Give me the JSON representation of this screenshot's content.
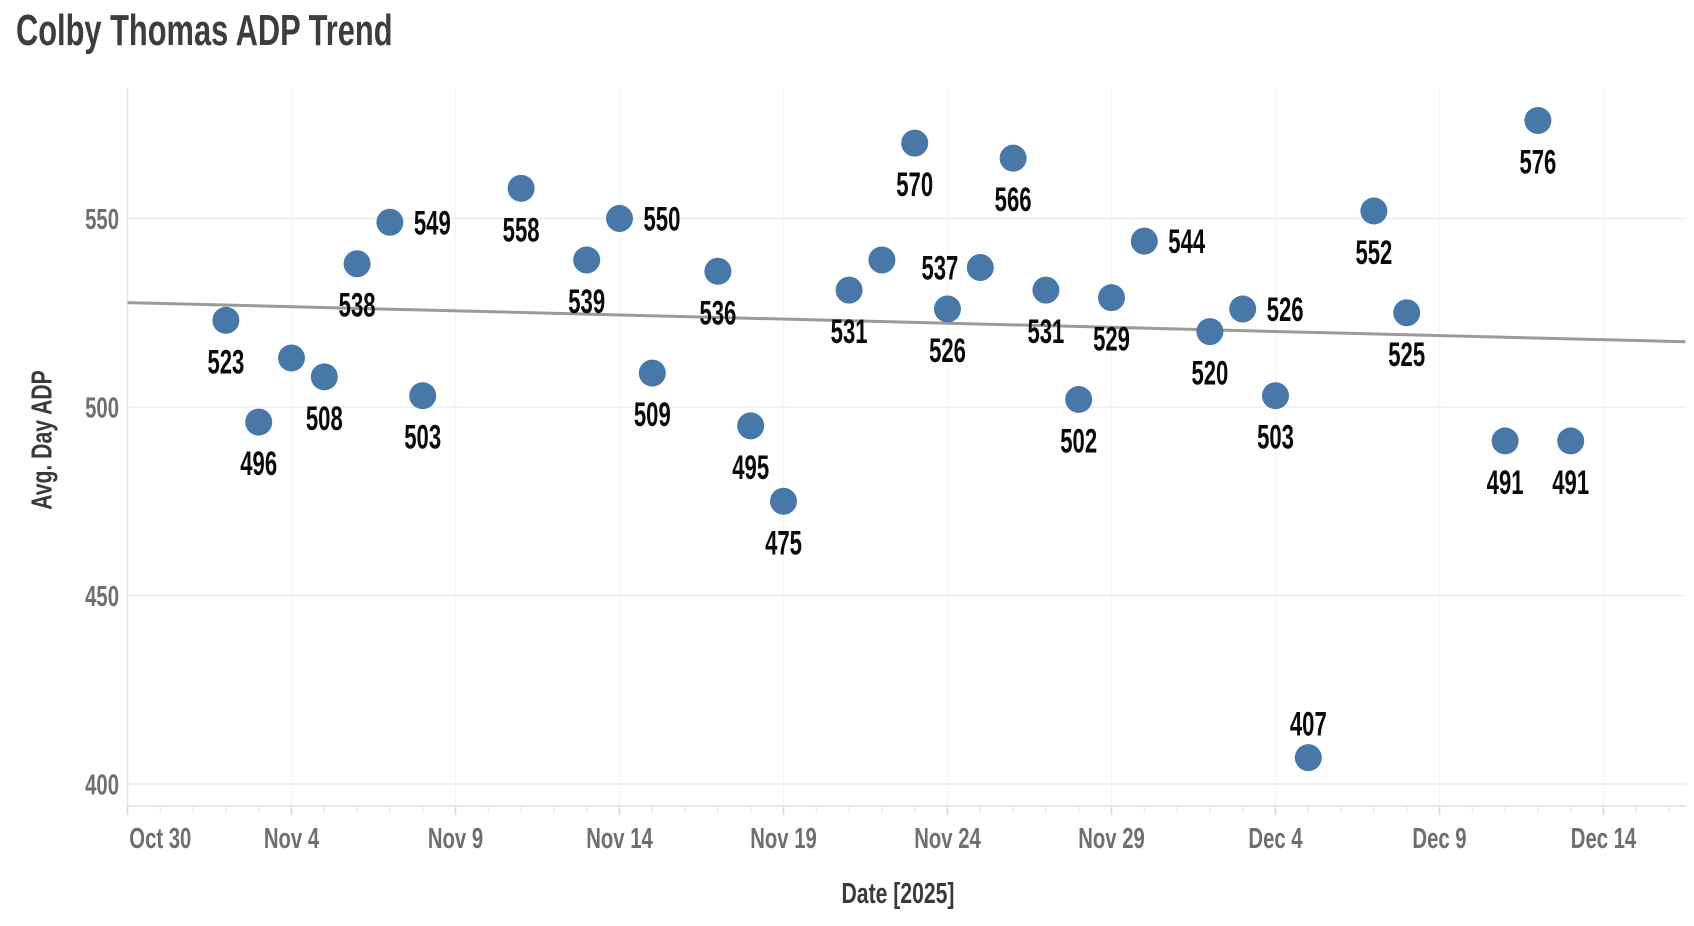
{
  "chart_data": {
    "type": "scatter",
    "title": "Colby Thomas ADP Trend",
    "xlabel": "Date [2025]",
    "ylabel": "Avg. Day ADP",
    "grid": "horizontal major gridlines + faint vertical gridlines at major ticks",
    "legend": "none",
    "y_ticks": [
      400,
      450,
      500,
      550
    ],
    "y_range": [
      394,
      585
    ],
    "x_range_days": [
      0,
      47.5
    ],
    "x_ticks": [
      {
        "label": "Oct 30",
        "day": 0,
        "label_shift_days": 1
      },
      {
        "label": "Nov 4",
        "day": 5,
        "label_shift_days": 0
      },
      {
        "label": "Nov 9",
        "day": 10,
        "label_shift_days": 0
      },
      {
        "label": "Nov 14",
        "day": 15,
        "label_shift_days": 0
      },
      {
        "label": "Nov 19",
        "day": 20,
        "label_shift_days": 0
      },
      {
        "label": "Nov 24",
        "day": 25,
        "label_shift_days": 0
      },
      {
        "label": "Nov 29",
        "day": 30,
        "label_shift_days": 0
      },
      {
        "label": "Dec 4",
        "day": 35,
        "label_shift_days": 0
      },
      {
        "label": "Dec 9",
        "day": 40,
        "label_shift_days": 0
      },
      {
        "label": "Dec 14",
        "day": 45,
        "label_shift_days": 0
      }
    ],
    "points": [
      {
        "date": "Nov 2",
        "day": 3,
        "value": 523,
        "label": "523",
        "label_pos": "below"
      },
      {
        "date": "Nov 3",
        "day": 4,
        "value": 496,
        "label": "496",
        "label_pos": "below"
      },
      {
        "date": "Nov 4",
        "day": 5,
        "value": 513,
        "label": "",
        "label_pos": "none"
      },
      {
        "date": "Nov 5",
        "day": 6,
        "value": 508,
        "label": "508",
        "label_pos": "below"
      },
      {
        "date": "Nov 6",
        "day": 7,
        "value": 538,
        "label": "538",
        "label_pos": "below"
      },
      {
        "date": "Nov 7",
        "day": 8,
        "value": 549,
        "label": "549",
        "label_pos": "right"
      },
      {
        "date": "Nov 8",
        "day": 9,
        "value": 503,
        "label": "503",
        "label_pos": "below"
      },
      {
        "date": "Nov 11",
        "day": 12,
        "value": 558,
        "label": "558",
        "label_pos": "below"
      },
      {
        "date": "Nov 13",
        "day": 14,
        "value": 539,
        "label": "539",
        "label_pos": "below"
      },
      {
        "date": "Nov 14",
        "day": 15,
        "value": 550,
        "label": "550",
        "label_pos": "right"
      },
      {
        "date": "Nov 15",
        "day": 16,
        "value": 509,
        "label": "509",
        "label_pos": "below"
      },
      {
        "date": "Nov 17",
        "day": 18,
        "value": 536,
        "label": "536",
        "label_pos": "below"
      },
      {
        "date": "Nov 18",
        "day": 19,
        "value": 495,
        "label": "495",
        "label_pos": "below"
      },
      {
        "date": "Nov 19",
        "day": 20,
        "value": 475,
        "label": "475",
        "label_pos": "below"
      },
      {
        "date": "Nov 21",
        "day": 22,
        "value": 531,
        "label": "531",
        "label_pos": "below"
      },
      {
        "date": "Nov 22",
        "day": 23,
        "value": 539,
        "label": "",
        "label_pos": "none"
      },
      {
        "date": "Nov 23",
        "day": 24,
        "value": 570,
        "label": "570",
        "label_pos": "below"
      },
      {
        "date": "Nov 24",
        "day": 25,
        "value": 526,
        "label": "526",
        "label_pos": "below"
      },
      {
        "date": "Nov 25",
        "day": 26,
        "value": 537,
        "label": "537",
        "label_pos": "left"
      },
      {
        "date": "Nov 26",
        "day": 27,
        "value": 566,
        "label": "566",
        "label_pos": "below"
      },
      {
        "date": "Nov 27",
        "day": 28,
        "value": 531,
        "label": "531",
        "label_pos": "below"
      },
      {
        "date": "Nov 28",
        "day": 29,
        "value": 502,
        "label": "502",
        "label_pos": "below"
      },
      {
        "date": "Nov 29",
        "day": 30,
        "value": 529,
        "label": "529",
        "label_pos": "below"
      },
      {
        "date": "Nov 30",
        "day": 31,
        "value": 544,
        "label": "544",
        "label_pos": "right"
      },
      {
        "date": "Dec 2",
        "day": 33,
        "value": 520,
        "label": "520",
        "label_pos": "below"
      },
      {
        "date": "Dec 3",
        "day": 34,
        "value": 526,
        "label": "526",
        "label_pos": "right"
      },
      {
        "date": "Dec 4",
        "day": 35,
        "value": 503,
        "label": "503",
        "label_pos": "below"
      },
      {
        "date": "Dec 5",
        "day": 36,
        "value": 407,
        "label": "407",
        "label_pos": "above"
      },
      {
        "date": "Dec 7",
        "day": 38,
        "value": 552,
        "label": "552",
        "label_pos": "below"
      },
      {
        "date": "Dec 8",
        "day": 39,
        "value": 525,
        "label": "525",
        "label_pos": "below"
      },
      {
        "date": "Dec 11",
        "day": 42,
        "value": 491,
        "label": "491",
        "label_pos": "below"
      },
      {
        "date": "Dec 12",
        "day": 43,
        "value": 576,
        "label": "576",
        "label_pos": "below"
      },
      {
        "date": "Dec 13",
        "day": 44,
        "value": 491,
        "label": "491",
        "label_pos": "below"
      }
    ],
    "trend_line": {
      "start_day": 0,
      "start_value": 527.7,
      "end_day": 47.5,
      "end_value": 517.3
    },
    "colors": {
      "point": "#4878a8",
      "trend": "#9a9a9a",
      "data_label": "#0a0a0a",
      "tick_label": "#6f6f6f",
      "title": "#3d3d3d",
      "gridline": "#ededed",
      "axis_line": "#e0e0e0",
      "minor_tick": "#e9e9e9",
      "major_tick": "#d7d7d7",
      "v_gridline": "#f5f5f5",
      "first_v_gridline": "#e8e8e8"
    }
  }
}
